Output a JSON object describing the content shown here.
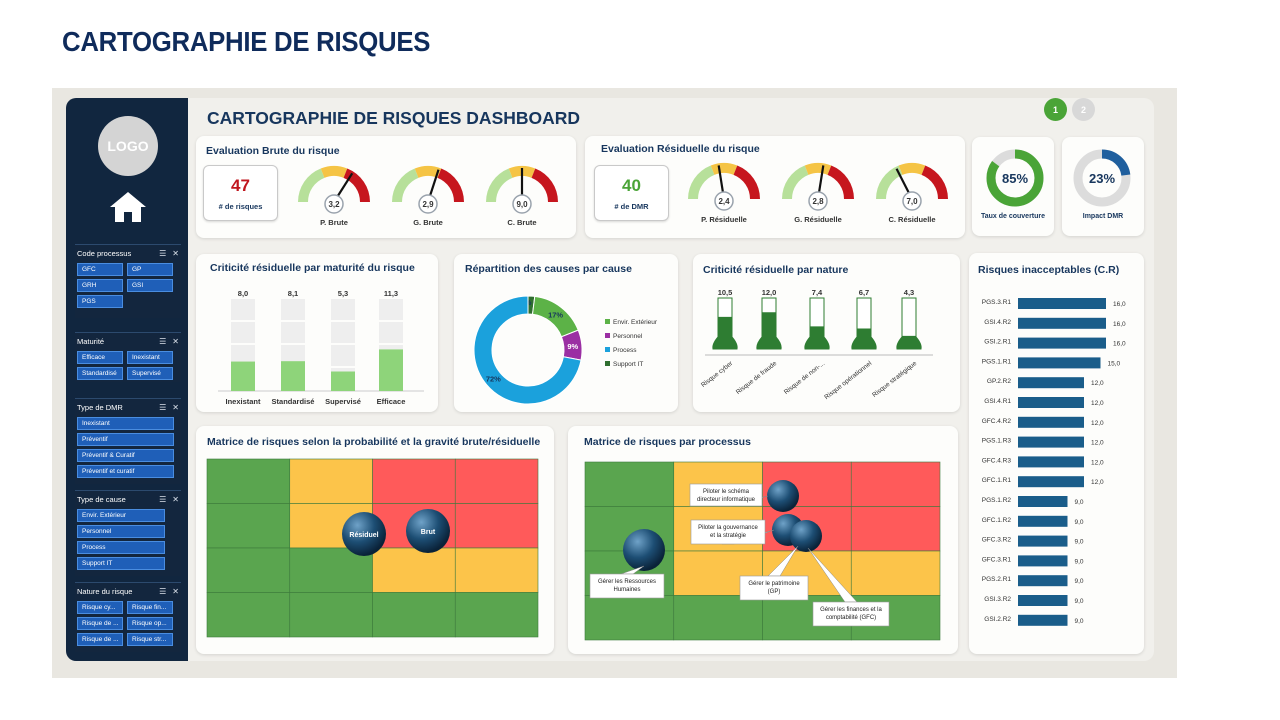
{
  "slide_title": "CARTOGRAPHIE DE RISQUES",
  "dashboard_title": "CARTOGRAPHIE DE RISQUES DASHBOARD",
  "pages": [
    "1",
    "2"
  ],
  "colors": {
    "navy": "#11263f",
    "chip_blue": "#1f5fb8",
    "green": "#5aa54f",
    "yellow": "#fcc44a",
    "red": "#ff5a5a",
    "bar": "#1a5d8a"
  },
  "sidebar": {
    "logo": "LOGO",
    "home_icon": "home-icon",
    "slicers": [
      {
        "title": "Code processus",
        "items": [
          "GFC",
          "GP",
          "GRH",
          "GSI",
          "PGS"
        ]
      },
      {
        "title": "Maturité",
        "items": [
          "Efficace",
          "Inexistant",
          "Standardisé",
          "Supervisé"
        ]
      },
      {
        "title": "Type de DMR",
        "items": [
          "Inexistant",
          "Préventif",
          "Préventif & Curatif",
          "Préventif et curatif"
        ]
      },
      {
        "title": "Type de cause",
        "items": [
          "Envir. Extérieur",
          "Personnel",
          "Process",
          "Support IT"
        ]
      },
      {
        "title": "Nature du risque",
        "items": [
          "Risque cy...",
          "Risque de ...",
          "Risque de ...",
          "Risque fin...",
          "Risque op...",
          "Risque str..."
        ]
      }
    ]
  },
  "brute": {
    "title": "Evaluation Brute du risque",
    "kpi_value": "47",
    "kpi_label": "# de risques",
    "gauges": [
      {
        "value": "3,2",
        "label": "P. Brute",
        "needle": 0.68
      },
      {
        "value": "2,9",
        "label": "G. Brute",
        "needle": 0.6
      },
      {
        "value": "9,0",
        "label": "C. Brute",
        "needle": 0.5
      }
    ]
  },
  "residuelle": {
    "title": "Evaluation Résiduelle du risque",
    "kpi_value": "40",
    "kpi_label": "# de DMR",
    "gauges": [
      {
        "value": "2,4",
        "label": "P. Résiduelle",
        "needle": 0.45
      },
      {
        "value": "2,8",
        "label": "G. Résiduelle",
        "needle": 0.55
      },
      {
        "value": "7,0",
        "label": "C. Résiduelle",
        "needle": 0.35
      }
    ]
  },
  "taux": {
    "value": "85%",
    "label": "Taux de couverture",
    "fraction": 0.85
  },
  "impact": {
    "value": "23%",
    "label": "Impact DMR",
    "fraction": 0.23
  },
  "maturite_chart": {
    "title": "Criticité résiduelle par maturité du risque",
    "chart_data": {
      "type": "bar",
      "categories": [
        "Inexistant",
        "Standardisé",
        "Supervisé",
        "Efficace"
      ],
      "values": [
        8.0,
        8.1,
        5.3,
        11.3
      ],
      "labels": [
        "8,0",
        "8,1",
        "5,3",
        "11,3"
      ],
      "ylim": [
        0,
        25
      ]
    }
  },
  "causes_chart": {
    "title": "Répartition des causes par cause",
    "chart_data": {
      "type": "pie",
      "categories": [
        "Envir. Extérieur",
        "Personnel",
        "Process",
        "Support IT"
      ],
      "values": [
        17,
        9,
        72,
        2
      ],
      "labels": [
        "17%",
        "9%",
        "72%",
        "2%"
      ],
      "colors": [
        "#5cb247",
        "#9b2fa3",
        "#1ba1dc",
        "#2f6e2f"
      ]
    }
  },
  "nature_chart": {
    "title": "Criticité résiduelle par nature",
    "chart_data": {
      "type": "bar",
      "categories": [
        "Risque cyber",
        "Risque de fraude",
        "Risque de non-...",
        "Risque opérationnel",
        "Risque stratégique"
      ],
      "values": [
        10.5,
        12.0,
        7.4,
        6.7,
        4.3
      ],
      "labels": [
        "10,5",
        "12,0",
        "7,4",
        "6,7",
        "4,3"
      ],
      "ylim": [
        0,
        25
      ]
    }
  },
  "inacceptables_chart": {
    "title": "Risques inacceptables (C.R)",
    "chart_data": {
      "type": "bar",
      "categories": [
        "PGS.3.R1",
        "GSI.4.R2",
        "GSI.2.R1",
        "PGS.1.R1",
        "GP.2.R2",
        "GSI.4.R1",
        "GFC.4.R2",
        "PGS.1.R3",
        "GFC.4.R3",
        "GFC.1.R1",
        "PGS.1.R2",
        "GFC.1.R2",
        "GFC.3.R2",
        "GFC.3.R1",
        "PGS.2.R1",
        "GSI.3.R2",
        "GSI.2.R2"
      ],
      "values": [
        16.0,
        16.0,
        16.0,
        15.0,
        12.0,
        12.0,
        12.0,
        12.0,
        12.0,
        12.0,
        9.0,
        9.0,
        9.0,
        9.0,
        9.0,
        9.0,
        9.0
      ],
      "labels": [
        "16,0",
        "16,0",
        "16,0",
        "15,0",
        "12,0",
        "12,0",
        "12,0",
        "12,0",
        "12,0",
        "12,0",
        "9,0",
        "9,0",
        "9,0",
        "9,0",
        "9,0",
        "9,0",
        "9,0"
      ],
      "xlim": [
        0,
        16
      ]
    }
  },
  "matrice_brute": {
    "title": "Matrice de risques selon la probabilité et la gravité brute/résiduelle",
    "bubbles": [
      {
        "label": "Résiduel"
      },
      {
        "label": "Brut"
      }
    ]
  },
  "matrice_processus": {
    "title": "Matrice de risques par processus",
    "callouts": [
      "Piloter le schéma directeur informatique",
      "Piloter la gouvernance et la stratégie",
      "Gérer les Ressources Humaines",
      "Gérer le patrimoine (GP)",
      "Gérer les finances et la comptabilité (GFC)"
    ]
  }
}
